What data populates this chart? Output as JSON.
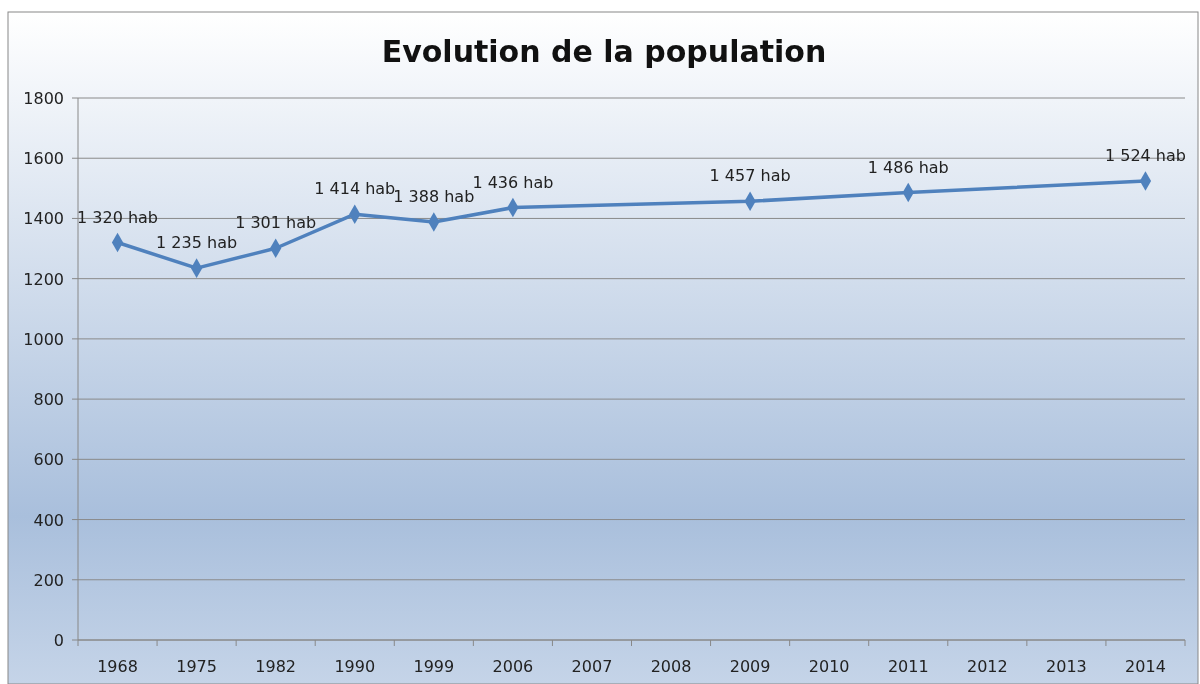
{
  "chart_data": {
    "type": "line",
    "title": "Evolution de la population",
    "categories": [
      "1968",
      "1975",
      "1982",
      "1990",
      "1999",
      "2006",
      "2007",
      "2008",
      "2009",
      "2010",
      "2011",
      "2012",
      "2013",
      "2014"
    ],
    "series": [
      {
        "color": "#4f81bd",
        "values": [
          1320,
          1235,
          1301,
          1414,
          1388,
          1436,
          null,
          null,
          1457,
          null,
          1486,
          null,
          null,
          1524
        ],
        "value_labels": [
          "1 320 hab",
          "1 235 hab",
          "1 301 hab",
          "1 414 hab",
          "1 388 hab",
          "1 436 hab",
          null,
          null,
          "1 457 hab",
          null,
          "1 486 hab",
          null,
          null,
          "1 524 hab"
        ]
      }
    ],
    "ylim": [
      0,
      1800
    ],
    "yticks": [
      0,
      200,
      400,
      600,
      800,
      1000,
      1200,
      1400,
      1600,
      1800
    ],
    "grid": "y",
    "marker": "diamond",
    "line_style": "solid"
  }
}
